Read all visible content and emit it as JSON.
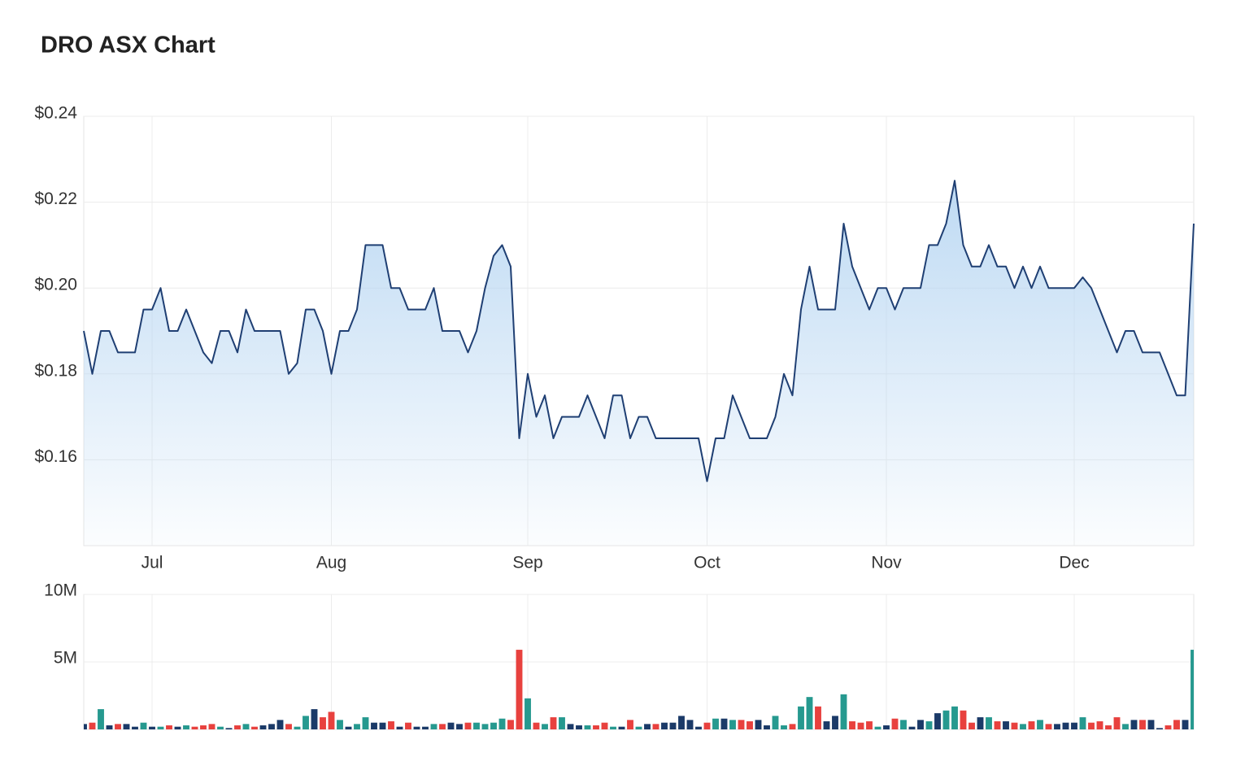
{
  "chart_data": [
    {
      "type": "line",
      "title": "DRO ASX Chart",
      "color": "#1f3f73",
      "fill": "#b7d6f2",
      "grid": true,
      "values": [
        0.19,
        0.18,
        0.19,
        0.19,
        0.185,
        0.185,
        0.185,
        0.195,
        0.195,
        0.2,
        0.19,
        0.19,
        0.195,
        0.19,
        0.185,
        0.1825,
        0.19,
        0.19,
        0.185,
        0.195,
        0.19,
        0.19,
        0.19,
        0.19,
        0.18,
        0.1825,
        0.195,
        0.195,
        0.19,
        0.18,
        0.19,
        0.19,
        0.195,
        0.21,
        0.21,
        0.21,
        0.2,
        0.2,
        0.195,
        0.195,
        0.195,
        0.2,
        0.19,
        0.19,
        0.19,
        0.185,
        0.19,
        0.2,
        0.2075,
        0.21,
        0.205,
        0.165,
        0.18,
        0.17,
        0.175,
        0.165,
        0.17,
        0.17,
        0.17,
        0.175,
        0.17,
        0.165,
        0.175,
        0.175,
        0.165,
        0.17,
        0.17,
        0.165,
        0.165,
        0.165,
        0.165,
        0.165,
        0.165,
        0.155,
        0.165,
        0.165,
        0.175,
        0.17,
        0.165,
        0.165,
        0.165,
        0.17,
        0.18,
        0.175,
        0.195,
        0.205,
        0.195,
        0.195,
        0.195,
        0.215,
        0.205,
        0.2,
        0.195,
        0.2,
        0.2,
        0.195,
        0.2,
        0.2,
        0.2,
        0.21,
        0.21,
        0.215,
        0.225,
        0.21,
        0.205,
        0.205,
        0.21,
        0.205,
        0.205,
        0.2,
        0.205,
        0.2,
        0.205,
        0.2,
        0.2,
        0.2,
        0.2,
        0.2025,
        0.2,
        0.195,
        0.19,
        0.185,
        0.19,
        0.19,
        0.185,
        0.185,
        0.185,
        0.18,
        0.175,
        0.175,
        0.215
      ],
      "xlim": [
        0,
        130
      ],
      "xticks": [
        {
          "value": 8,
          "label": "Jul"
        },
        {
          "value": 29,
          "label": "Aug"
        },
        {
          "value": 52,
          "label": "Sep"
        },
        {
          "value": 73,
          "label": "Oct"
        },
        {
          "value": 94,
          "label": "Nov"
        },
        {
          "value": 116,
          "label": "Dec"
        }
      ],
      "ylim": [
        0.14,
        0.24
      ],
      "yticks": [
        {
          "value": 0.16,
          "label": "$0.16"
        },
        {
          "value": 0.18,
          "label": "$0.18"
        },
        {
          "value": 0.2,
          "label": "$0.20"
        },
        {
          "value": 0.22,
          "label": "$0.22"
        },
        {
          "value": 0.24,
          "label": "$0.24"
        }
      ]
    },
    {
      "type": "bar",
      "grid": true,
      "colors": {
        "up": "#26998f",
        "down": "#e8413e",
        "flat": "#1b3a68"
      },
      "values": [
        400000,
        500000,
        1500000,
        300000,
        400000,
        400000,
        200000,
        500000,
        200000,
        200000,
        300000,
        200000,
        300000,
        200000,
        300000,
        400000,
        200000,
        100000,
        300000,
        400000,
        200000,
        300000,
        400000,
        700000,
        400000,
        200000,
        1000000,
        1500000,
        900000,
        1300000,
        700000,
        200000,
        400000,
        900000,
        500000,
        500000,
        600000,
        200000,
        500000,
        200000,
        200000,
        400000,
        400000,
        500000,
        400000,
        500000,
        500000,
        400000,
        500000,
        800000,
        700000,
        5900000,
        2300000,
        500000,
        400000,
        900000,
        900000,
        400000,
        300000,
        300000,
        300000,
        500000,
        200000,
        200000,
        700000,
        200000,
        400000,
        400000,
        500000,
        500000,
        1000000,
        700000,
        200000,
        500000,
        800000,
        800000,
        700000,
        700000,
        600000,
        700000,
        300000,
        1000000,
        300000,
        400000,
        1700000,
        2400000,
        1700000,
        600000,
        1000000,
        2600000,
        600000,
        500000,
        600000,
        200000,
        300000,
        800000,
        700000,
        200000,
        700000,
        600000,
        1200000,
        1400000,
        1700000,
        1400000,
        500000,
        900000,
        900000,
        600000,
        600000,
        500000,
        400000,
        600000,
        700000,
        400000,
        400000,
        500000,
        500000,
        900000,
        500000,
        600000,
        300000,
        900000,
        400000,
        700000,
        700000,
        700000,
        100000,
        300000,
        700000,
        700000,
        5900000
      ],
      "xlim": [
        0,
        130
      ],
      "ylim": [
        0,
        10000000
      ],
      "yticks": [
        {
          "value": 5000000,
          "label": "5M"
        },
        {
          "value": 10000000,
          "label": "10M"
        }
      ]
    }
  ]
}
